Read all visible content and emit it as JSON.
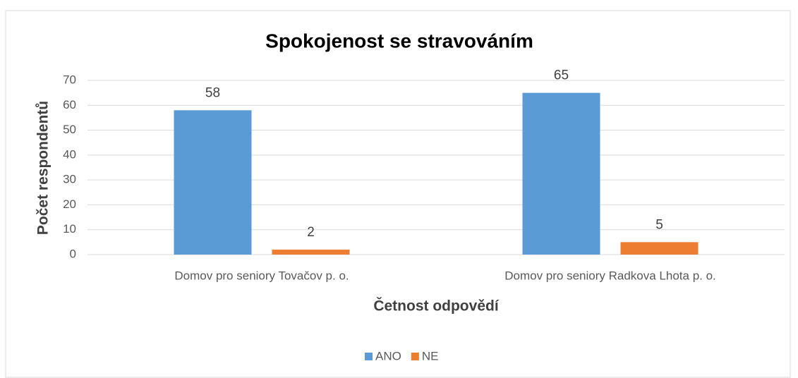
{
  "chart_data": {
    "type": "bar",
    "title": "Spokojenost se stravováním",
    "x_label": "Četnost odpovědí",
    "y_label": "Počet respondentů",
    "categories": [
      "Domov pro seniory Tovačov p. o.",
      "Domov pro seniory Radkova Lhota p. o."
    ],
    "series": [
      {
        "name": "ANO",
        "color": "#5b9bd5",
        "values": [
          58,
          65
        ]
      },
      {
        "name": "NE",
        "color": "#ed7d31",
        "values": [
          2,
          5
        ]
      }
    ],
    "ylim": [
      0,
      70
    ],
    "yticks": [
      0,
      10,
      20,
      30,
      40,
      50,
      60,
      70
    ],
    "grid": true,
    "legend": "bottom"
  }
}
